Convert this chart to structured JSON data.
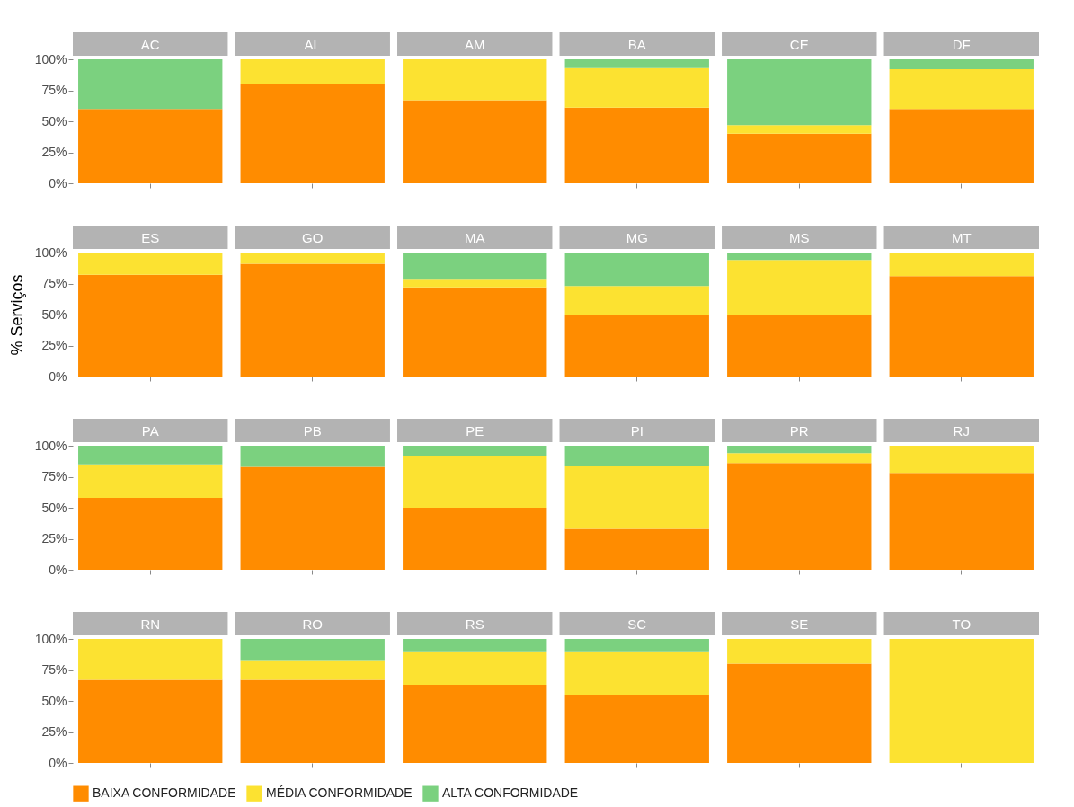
{
  "chart_data": [
    {
      "type": "bar",
      "stacked": true,
      "categories": [
        "AC",
        "AL",
        "AM",
        "BA",
        "CE",
        "DF"
      ],
      "ylim": [
        0,
        100
      ],
      "yticks": [
        {
          "value": 0,
          "label": "0%"
        },
        {
          "value": 25,
          "label": "25%"
        },
        {
          "value": 50,
          "label": "50%"
        },
        {
          "value": 75,
          "label": "75%"
        },
        {
          "value": 100,
          "label": "100%"
        }
      ],
      "legend": "bottom",
      "series": [
        {
          "name": "BAIXA CONFORMIDADE",
          "color": "#ff8c00",
          "values": [
            60,
            80,
            67,
            61,
            40,
            60
          ]
        },
        {
          "name": "MÉDIA CONFORMIDADE",
          "color": "#fce231",
          "values": [
            null,
            20,
            33,
            32,
            7,
            32
          ]
        },
        {
          "name": "ALTA CONFORMIDADE",
          "color": "#7bd17f",
          "values": [
            40,
            null,
            null,
            7,
            53,
            8
          ]
        }
      ]
    },
    {
      "type": "bar",
      "stacked": true,
      "ylabel": "% Serviços",
      "categories": [
        "ES",
        "GO",
        "MA",
        "MG",
        "MS",
        "MT"
      ],
      "ylim": [
        0,
        100
      ],
      "yticks": [
        {
          "value": 0,
          "label": "0%"
        },
        {
          "value": 25,
          "label": "25%"
        },
        {
          "value": 50,
          "label": "50%"
        },
        {
          "value": 75,
          "label": "75%"
        },
        {
          "value": 100,
          "label": "100%"
        }
      ],
      "series": [
        {
          "color": "#ff8c00",
          "values": [
            82,
            91,
            72,
            50,
            50,
            81
          ]
        },
        {
          "color": "#fce231",
          "values": [
            18,
            9,
            6,
            23,
            44,
            19
          ]
        },
        {
          "color": "#7bd17f",
          "values": [
            null,
            null,
            22,
            27,
            6,
            null
          ]
        }
      ]
    },
    {
      "type": "bar",
      "stacked": true,
      "categories": [
        "PA",
        "PB",
        "PE",
        "PI",
        "PR",
        "RJ"
      ],
      "ylim": [
        0,
        100
      ],
      "yticks": [
        {
          "value": 0,
          "label": "0%"
        },
        {
          "value": 25,
          "label": "25%"
        },
        {
          "value": 50,
          "label": "50%"
        },
        {
          "value": 75,
          "label": "75%"
        },
        {
          "value": 100,
          "label": "100%"
        }
      ],
      "series": [
        {
          "color": "#ff8c00",
          "values": [
            58,
            83,
            50,
            33,
            86,
            78
          ]
        },
        {
          "color": "#fce231",
          "values": [
            27,
            null,
            42,
            51,
            8,
            22
          ]
        },
        {
          "color": "#7bd17f",
          "values": [
            15,
            17,
            8,
            16,
            6,
            null
          ]
        }
      ]
    },
    {
      "type": "bar",
      "stacked": true,
      "categories": [
        "RN",
        "RO",
        "RS",
        "SC",
        "SE",
        "TO"
      ],
      "ylim": [
        0,
        100
      ],
      "yticks": [
        {
          "value": 0,
          "label": "0%"
        },
        {
          "value": 25,
          "label": "25%"
        },
        {
          "value": 50,
          "label": "50%"
        },
        {
          "value": 75,
          "label": "75%"
        },
        {
          "value": 100,
          "label": "100%"
        }
      ],
      "series": [
        {
          "color": "#ff8c00",
          "values": [
            67,
            67,
            63,
            55,
            80,
            null
          ]
        },
        {
          "color": "#fce231",
          "values": [
            33,
            16,
            27,
            35,
            20,
            100
          ]
        },
        {
          "color": "#7bd17f",
          "values": [
            null,
            17,
            10,
            10,
            null,
            null
          ]
        }
      ]
    }
  ]
}
